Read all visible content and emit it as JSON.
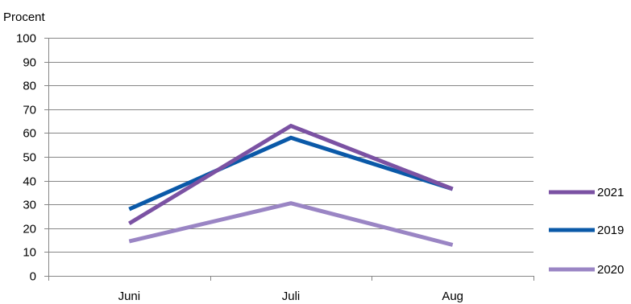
{
  "chart_data": {
    "type": "line",
    "ylabel": "Procent",
    "xlabel": "",
    "categories": [
      "Juni",
      "Juli",
      "Aug"
    ],
    "ylim": [
      0,
      100
    ],
    "yticks": [
      0,
      10,
      20,
      30,
      40,
      50,
      60,
      70,
      80,
      90,
      100
    ],
    "grid": true,
    "legend_position": "right",
    "series": [
      {
        "name": "2021",
        "values": [
          22,
          63,
          36.5
        ],
        "color": "#7b52a3"
      },
      {
        "name": "2019",
        "values": [
          28,
          58,
          36.5
        ],
        "color": "#0a59a8"
      },
      {
        "name": "2020",
        "values": [
          14.5,
          30.5,
          13
        ],
        "color": "#9a85c4"
      }
    ]
  }
}
